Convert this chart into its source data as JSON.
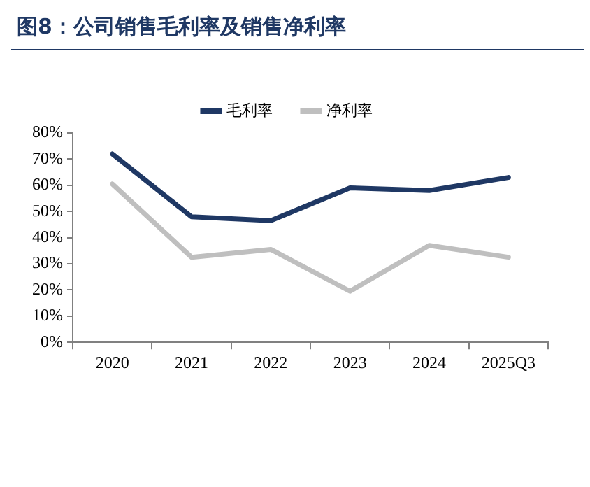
{
  "chart_data": {
    "type": "line",
    "title": "图8：公司销售毛利率及销售净利率",
    "categories": [
      "2020",
      "2021",
      "2022",
      "2023",
      "2024",
      "2025Q3"
    ],
    "series": [
      {
        "name": "毛利率",
        "color": "#1f3864",
        "values": [
          72,
          48,
          46.5,
          59,
          58,
          63
        ]
      },
      {
        "name": "净利率",
        "color": "#bfbfbf",
        "values": [
          60.5,
          32.5,
          35.5,
          19.5,
          37,
          32.5
        ]
      }
    ],
    "ylim": [
      0,
      80
    ],
    "yticks": [
      {
        "value": 0,
        "label": "0%"
      },
      {
        "value": 10,
        "label": "10%"
      },
      {
        "value": 20,
        "label": "20%"
      },
      {
        "value": 30,
        "label": "30%"
      },
      {
        "value": 40,
        "label": "40%"
      },
      {
        "value": 50,
        "label": "50%"
      },
      {
        "value": 60,
        "label": "60%"
      },
      {
        "value": 70,
        "label": "70%"
      },
      {
        "value": 80,
        "label": "80%"
      }
    ],
    "grid": false,
    "legend": "top",
    "marker": "none",
    "line_style": "solid"
  }
}
